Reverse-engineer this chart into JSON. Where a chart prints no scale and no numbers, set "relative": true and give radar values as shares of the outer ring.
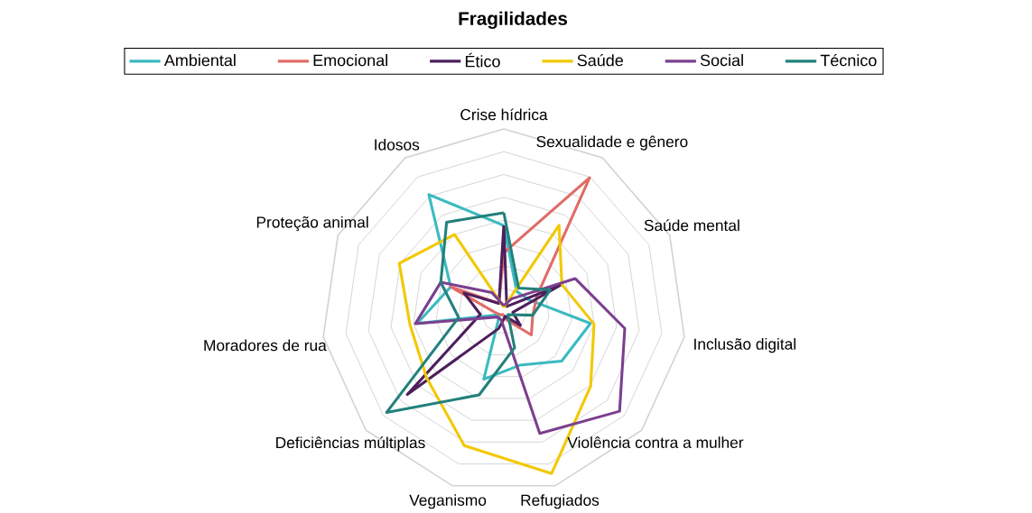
{
  "chart_data": {
    "type": "radar",
    "title": "Fragilidades",
    "relative": true,
    "grid": true,
    "legend": "top",
    "categories": [
      "Crise hídrica",
      "Sexualidade e gênero",
      "Saúde mental",
      "Inclusão digital",
      "Violência contra a mulher",
      "Refugiados",
      "Veganismo",
      "Deficiências múltiplas",
      "Moradores de rua",
      "Proteção animal",
      "Idosos"
    ],
    "series": [
      {
        "name": "Ambiental",
        "color": "#3bbac0",
        "values": [
          0.47,
          0.13,
          0.15,
          0.48,
          0.42,
          0.31,
          0.39,
          0.03,
          0.48,
          0.32,
          0.76
        ]
      },
      {
        "name": "Emocional",
        "color": "#e06c67",
        "values": [
          0.32,
          0.87,
          0.2,
          0.16,
          0.2,
          0.05,
          0.02,
          0.03,
          0.05,
          0.32,
          0.05
        ]
      },
      {
        "name": "Ético",
        "color": "#4d1f5c",
        "values": [
          0.47,
          0.03,
          0.34,
          0.05,
          0.12,
          0.03,
          0.1,
          0.7,
          0.13,
          0.24,
          0.05
        ]
      },
      {
        "name": "Saúde",
        "color": "#f2c800",
        "values": [
          0.02,
          0.56,
          0.35,
          0.5,
          0.63,
          0.93,
          0.77,
          0.56,
          0.52,
          0.63,
          0.5
        ]
      },
      {
        "name": "Social",
        "color": "#7b3f8f",
        "values": [
          0.03,
          0.08,
          0.43,
          0.67,
          0.84,
          0.7,
          0.05,
          0.05,
          0.49,
          0.38,
          0.12
        ]
      },
      {
        "name": "Técnico",
        "color": "#22807c",
        "values": [
          0.54,
          0.15,
          0.28,
          0.16,
          0.03,
          0.21,
          0.48,
          0.85,
          0.25,
          0.38,
          0.58
        ]
      }
    ]
  }
}
